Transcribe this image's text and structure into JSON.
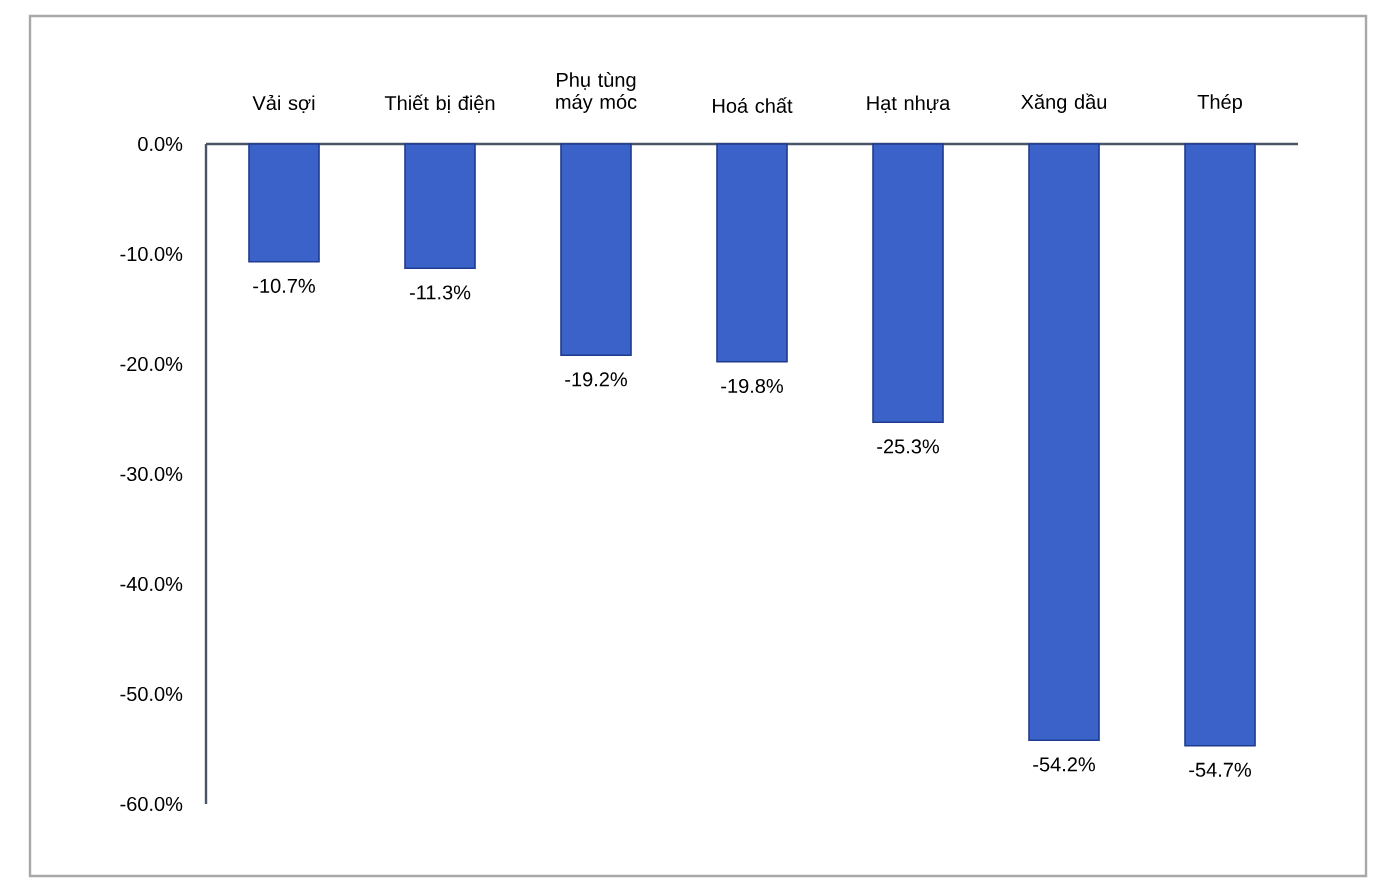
{
  "chart_data": {
    "type": "bar",
    "categories": [
      "Vải sợi",
      "Thiết bị điện",
      "Phụ tùng máy móc",
      "Hoá chất",
      "Hạt nhựa",
      "Xăng dầu",
      "Thép"
    ],
    "values": [
      -10.7,
      -11.3,
      -19.2,
      -19.8,
      -25.3,
      -54.2,
      -54.7
    ],
    "value_labels": [
      "-10.7%",
      "-11.3%",
      "-19.2%",
      "-19.8%",
      "-25.3%",
      "-54.2%",
      "-54.7%"
    ],
    "color": "#3a62c9",
    "ylim": [
      -60,
      0
    ],
    "yticks": [
      {
        "value": 0,
        "label": "0.0%"
      },
      {
        "value": -10,
        "label": "-10.0%"
      },
      {
        "value": -20,
        "label": "-20.0%"
      },
      {
        "value": -30,
        "label": "-30.0%"
      },
      {
        "value": -40,
        "label": "-40.0%"
      },
      {
        "value": -50,
        "label": "-50.0%"
      },
      {
        "value": -60,
        "label": "-60.0%"
      }
    ]
  }
}
